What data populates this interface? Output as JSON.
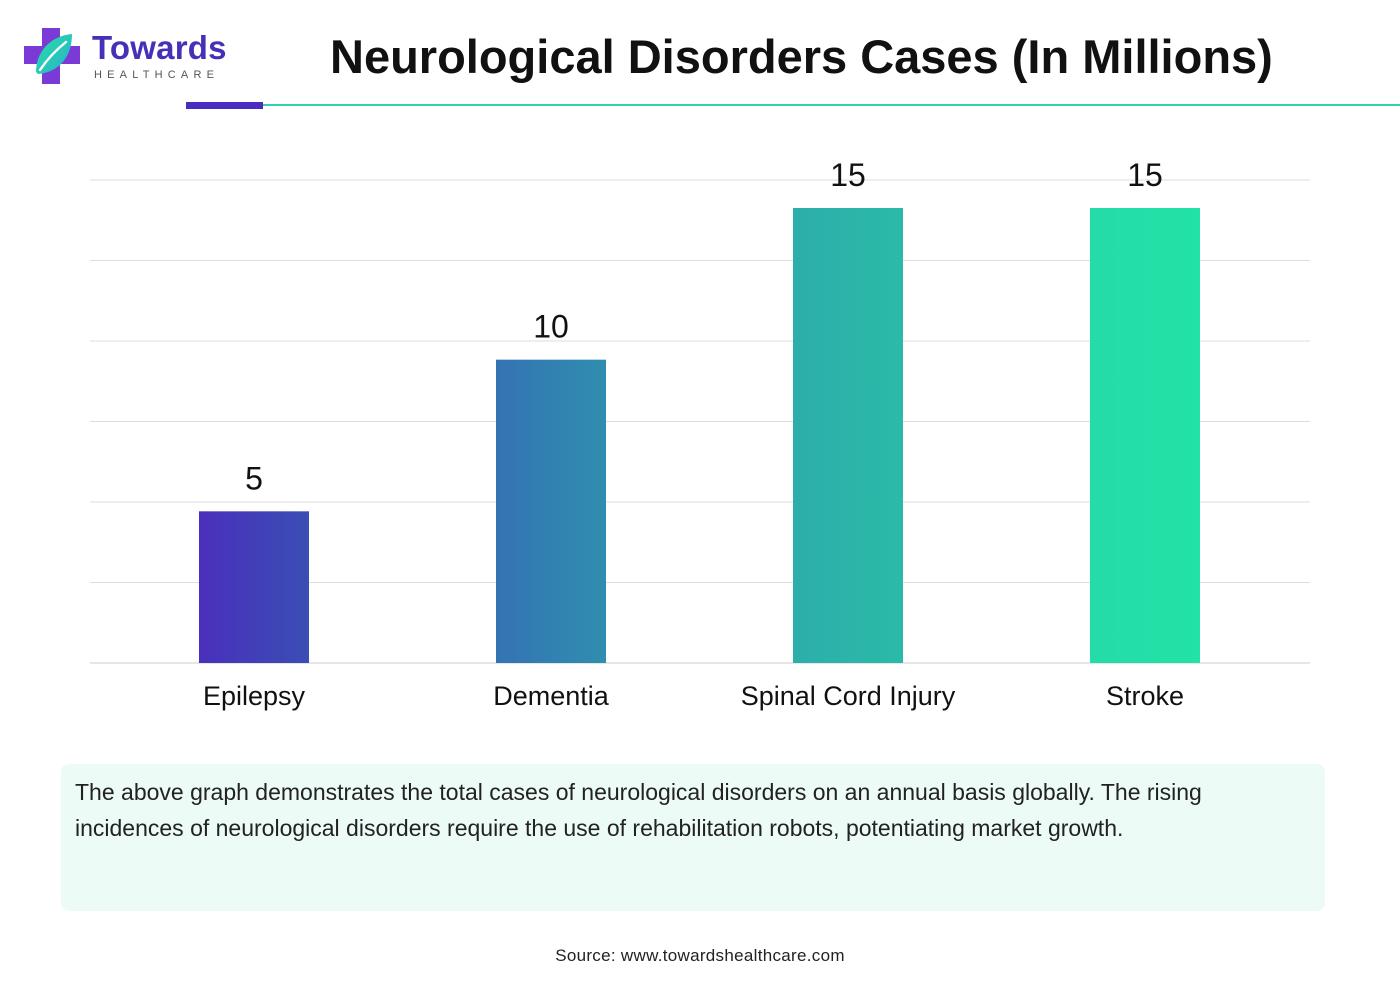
{
  "brand": {
    "name": "Towards",
    "tagline": "HEALTHCARE"
  },
  "title": "Neurological Disorders Cases (In Millions)",
  "colors": {
    "title_rule": "#2fd3a6",
    "title_accent": "#4a2cc0",
    "bars": [
      "#4a2fbd",
      "#3183b1",
      "#2bb8a8",
      "#23e2a8"
    ],
    "gridline": "#dedede",
    "note_background": "#ecfbf5"
  },
  "chart_data": {
    "type": "bar",
    "categories": [
      "Epilepsy",
      "Dementia",
      "Spinal Cord Injury",
      "Stroke"
    ],
    "values": [
      5,
      10,
      15,
      15
    ],
    "data_labels": [
      "5",
      "10",
      "15",
      "15"
    ],
    "title": "Neurological Disorders Cases (In Millions)",
    "xlabel": "",
    "ylabel": "",
    "ylim": [
      0,
      15
    ],
    "grid": true,
    "legend": "none"
  },
  "description": "The above graph demonstrates the total cases of neurological disorders on an annual basis globally. The rising incidences of neurological disorders require the use of rehabilitation robots, potentiating market growth.",
  "source": "Source: www.towardshealthcare.com"
}
